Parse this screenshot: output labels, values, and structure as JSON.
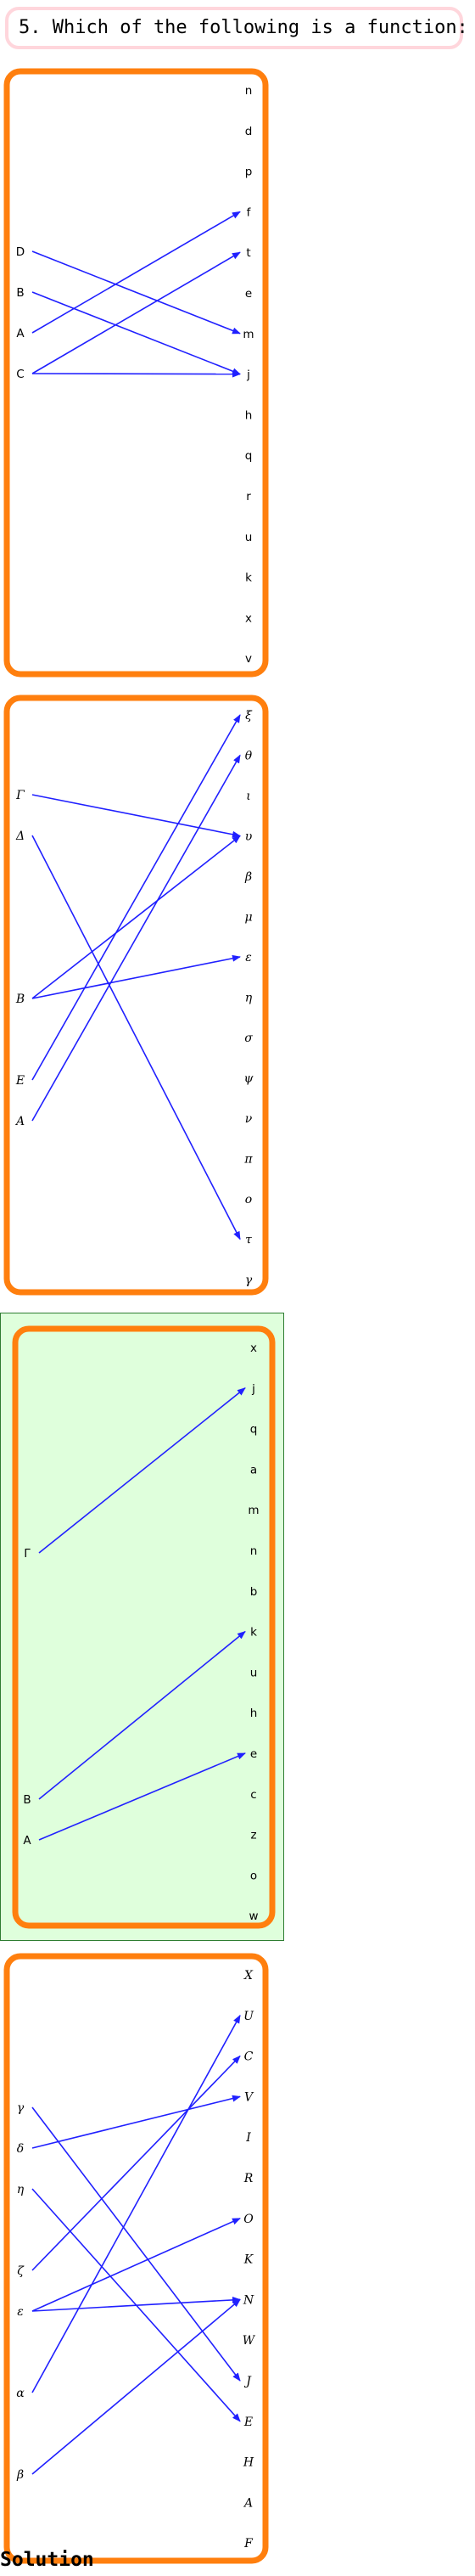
{
  "question": "5. Which of the following is a function:",
  "solution_label": "Solution",
  "colors": {
    "frame": "#ff7f0e",
    "arrow": "#2020ff",
    "highlight_bg": "#dfffdc",
    "highlight_border": "#2e7d32",
    "question_border": "#ffd6dc"
  },
  "diagrams": [
    {
      "highlighted": false,
      "italic": false,
      "domain": [
        "D",
        "B",
        "A",
        "C"
      ],
      "codomain": [
        "n",
        "d",
        "p",
        "f",
        "t",
        "e",
        "m",
        "j",
        "h",
        "q",
        "r",
        "u",
        "k",
        "x",
        "v"
      ],
      "mappings": [
        [
          "D",
          "m"
        ],
        [
          "B",
          "j"
        ],
        [
          "A",
          "f"
        ],
        [
          "C",
          "t"
        ],
        [
          "C",
          "j"
        ]
      ]
    },
    {
      "highlighted": false,
      "italic": true,
      "domain": [
        "Γ",
        "Δ",
        "B",
        "E",
        "A"
      ],
      "codomain": [
        "ξ",
        "θ",
        "ι",
        "υ",
        "β",
        "μ",
        "ε",
        "η",
        "σ",
        "ψ",
        "ν",
        "π",
        "ο",
        "τ",
        "γ"
      ],
      "mappings": [
        [
          "Γ",
          "υ"
        ],
        [
          "Δ",
          "τ"
        ],
        [
          "B",
          "υ"
        ],
        [
          "B",
          "ε"
        ],
        [
          "E",
          "ξ"
        ],
        [
          "A",
          "θ"
        ]
      ]
    },
    {
      "highlighted": true,
      "italic": false,
      "domain": [
        "Γ",
        "B",
        "A"
      ],
      "codomain": [
        "x",
        "j",
        "q",
        "a",
        "m",
        "n",
        "b",
        "k",
        "u",
        "h",
        "e",
        "c",
        "z",
        "o",
        "w"
      ],
      "mappings": [
        [
          "Γ",
          "j"
        ],
        [
          "B",
          "k"
        ],
        [
          "A",
          "e"
        ]
      ]
    },
    {
      "highlighted": false,
      "italic": true,
      "domain": [
        "γ",
        "δ",
        "η",
        "ζ",
        "ε",
        "α",
        "β"
      ],
      "codomain": [
        "X",
        "U",
        "C",
        "V",
        "I",
        "R",
        "O",
        "K",
        "N",
        "W",
        "J",
        "E",
        "H",
        "A",
        "F"
      ],
      "mappings": [
        [
          "γ",
          "J"
        ],
        [
          "δ",
          "V"
        ],
        [
          "η",
          "E"
        ],
        [
          "ζ",
          "C"
        ],
        [
          "ε",
          "O"
        ],
        [
          "ε",
          "N"
        ],
        [
          "α",
          "U"
        ],
        [
          "β",
          "N"
        ]
      ]
    }
  ]
}
